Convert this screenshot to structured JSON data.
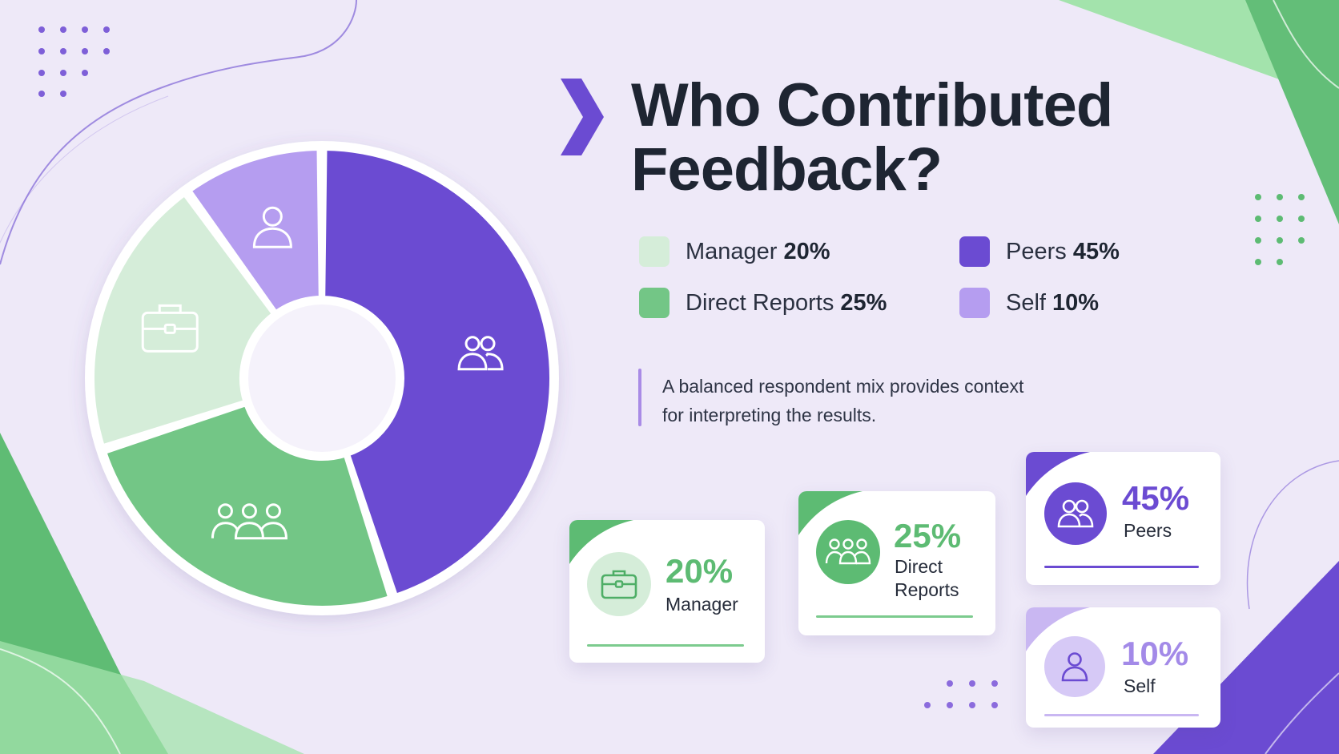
{
  "title": {
    "line1": "Who Contributed",
    "line2": "Feedback?"
  },
  "colors": {
    "background": "#EEE9F8",
    "manager": "#D5EDD9",
    "direct_reports": "#73C686",
    "peers": "#6B4BD2",
    "self": "#B59DF0",
    "accent_purple": "#6B4BD2",
    "accent_green": "#5DBB73"
  },
  "legend": [
    {
      "name": "Manager",
      "value": "20%",
      "color": "#D5EDD9"
    },
    {
      "name": "Peers",
      "value": "45%",
      "color": "#6B4BD2"
    },
    {
      "name": "Direct Reports",
      "value": "25%",
      "color": "#73C686"
    },
    {
      "name": "Self",
      "value": "10%",
      "color": "#B59DF0"
    }
  ],
  "note": "A balanced respondent mix provides context for interpreting the results.",
  "cards": {
    "manager": {
      "pct": "20%",
      "label": "Manager",
      "icon": "briefcase-icon"
    },
    "direct_reports": {
      "pct": "25%",
      "label_line1": "Direct",
      "label_line2": "Reports",
      "icon": "team-icon"
    },
    "peers": {
      "pct": "45%",
      "label": "Peers",
      "icon": "peers-icon"
    },
    "self": {
      "pct": "10%",
      "label": "Self",
      "icon": "person-icon"
    }
  },
  "chart_data": {
    "type": "pie",
    "variant": "donut",
    "title": "Who Contributed Feedback?",
    "categories": [
      "Peers",
      "Direct Reports",
      "Manager",
      "Self"
    ],
    "values": [
      45,
      25,
      20,
      10
    ],
    "unit": "%",
    "colors": [
      "#6B4BD2",
      "#73C686",
      "#D5EDD9",
      "#B59DF0"
    ],
    "icons": [
      "peers-icon",
      "team-icon",
      "briefcase-icon",
      "person-icon"
    ],
    "legend_placement": "right"
  }
}
